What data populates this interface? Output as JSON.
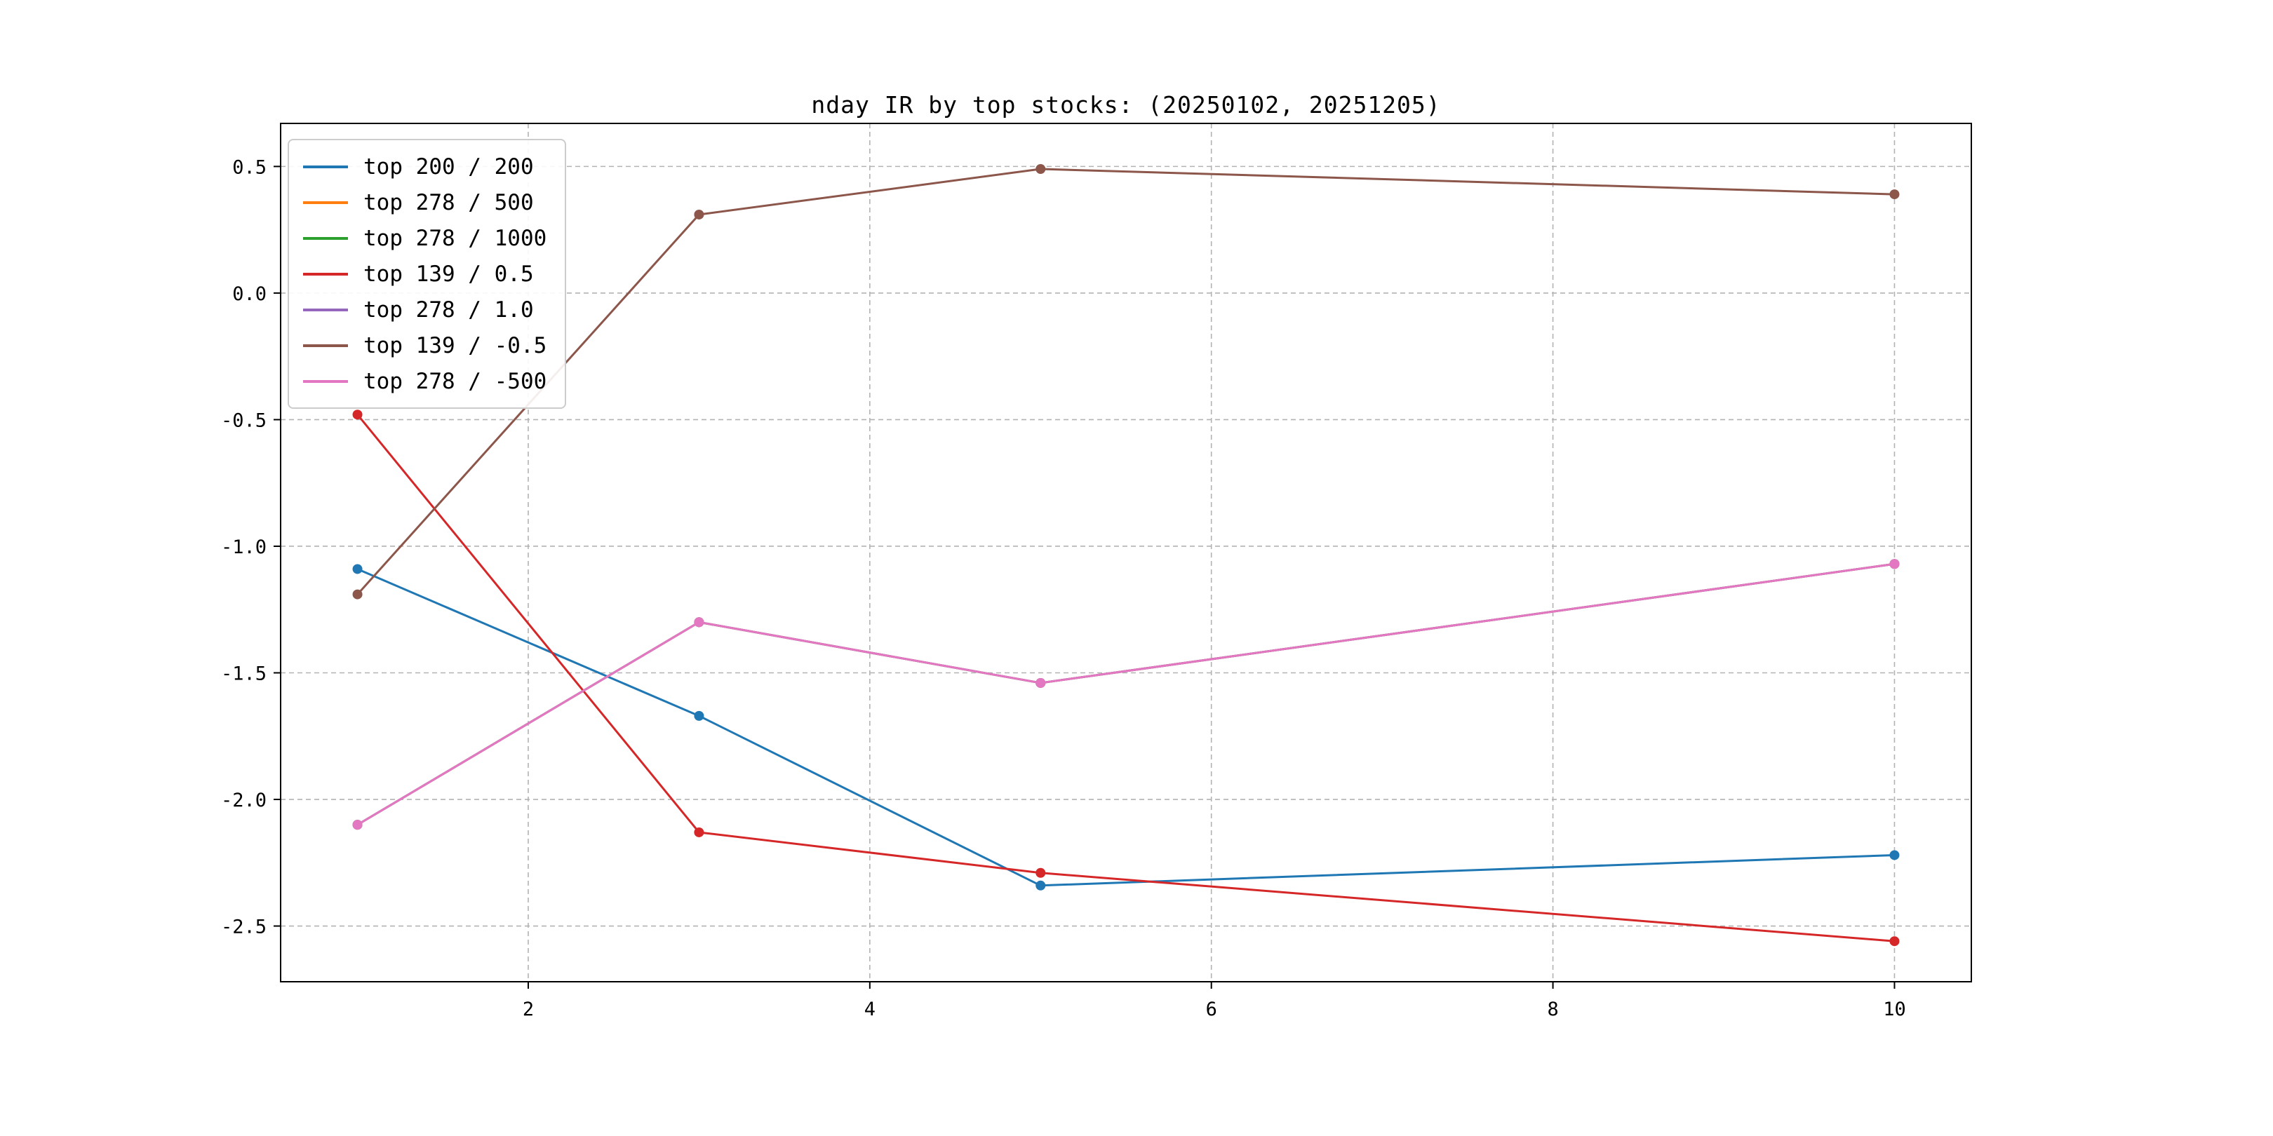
{
  "chart_data": {
    "type": "line",
    "title": "nday IR by top stocks: (20250102, 20251205)",
    "xlabel": "",
    "ylabel": "",
    "x": [
      1,
      3,
      5,
      10
    ],
    "series": [
      {
        "name": "top 200 / 200",
        "color": "#1f77b4",
        "values": [
          -1.09,
          -1.67,
          -2.34,
          -2.22
        ]
      },
      {
        "name": "top 278 / 500",
        "color": "#ff7f0e",
        "values": [
          -2.1,
          -1.3,
          -1.54,
          -1.07
        ]
      },
      {
        "name": "top 278 / 1000",
        "color": "#2ca02c",
        "values": [
          -2.1,
          -1.3,
          -1.54,
          -1.07
        ]
      },
      {
        "name": "top 139 / 0.5",
        "color": "#d62728",
        "values": [
          -0.48,
          -2.13,
          -2.29,
          -2.56
        ]
      },
      {
        "name": "top 278 / 1.0",
        "color": "#9467bd",
        "values": [
          -2.1,
          -1.3,
          -1.54,
          -1.07
        ]
      },
      {
        "name": "top 139 / -0.5",
        "color": "#8c564b",
        "values": [
          -1.19,
          0.31,
          0.49,
          0.39
        ]
      },
      {
        "name": "top 278 / -500",
        "color": "#e377c2",
        "values": [
          -2.1,
          -1.3,
          -1.54,
          -1.07
        ]
      }
    ],
    "note": "only four distinct polylines are visible; the top 278 / 500, top 278 / 1000 and top 278 / 1.0 curves are fully overlapped by the top 278 / -500 curve",
    "xlim": [
      0.55,
      10.45
    ],
    "ylim": [
      -2.72,
      0.67
    ],
    "xticks": {
      "values": [
        2,
        4,
        6,
        8,
        10
      ],
      "labels": [
        "2",
        "4",
        "6",
        "8",
        "10"
      ]
    },
    "yticks": {
      "values": [
        0.5,
        0.0,
        -0.5,
        -1.0,
        -1.5,
        -2.0,
        -2.5
      ],
      "labels": [
        "0.5",
        "0.0",
        "-0.5",
        "-1.0",
        "-1.5",
        "-2.0",
        "-2.5"
      ]
    },
    "grid": true,
    "legend_position": "upper left",
    "marker": "circle"
  }
}
